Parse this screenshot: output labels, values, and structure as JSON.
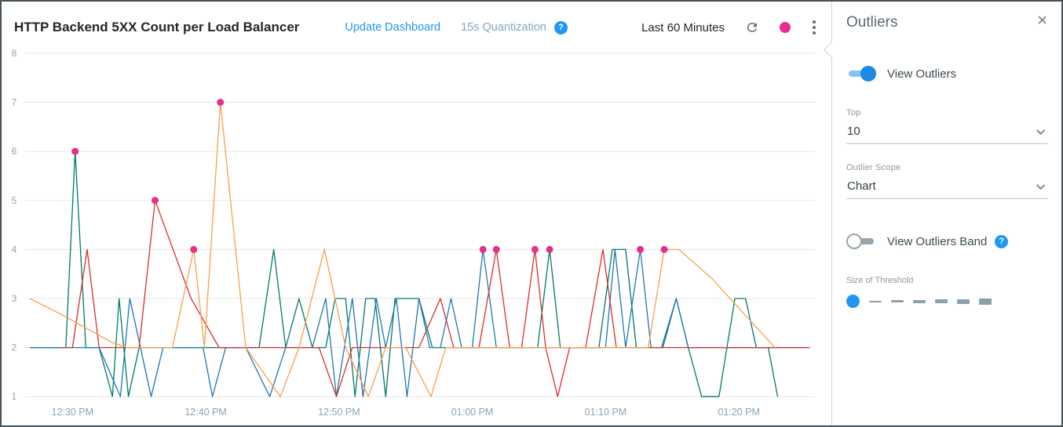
{
  "header": {
    "title": "HTTP Backend 5XX Count per Load Balancer",
    "update_dashboard_label": "Update Dashboard",
    "quantization_label": "15s Quantization",
    "help_glyph": "?",
    "time_range_label": "Last 60 Minutes",
    "chart_color_indicator": "#e82d8b"
  },
  "sidebar": {
    "title": "Outliers",
    "close_glyph": "×",
    "view_outliers": {
      "label": "View Outliers",
      "enabled": true
    },
    "top": {
      "label": "Top",
      "value": "10"
    },
    "outlier_scope": {
      "label": "Outlier Scope",
      "value": "Chart"
    },
    "view_outliers_band": {
      "label": "View Outliers Band",
      "enabled": false,
      "help_glyph": "?"
    },
    "size_of_threshold": {
      "label": "Size of Threshold",
      "sizes": [
        2,
        3,
        4,
        5,
        6,
        8
      ],
      "selected_color": "#2196f3"
    }
  },
  "chart_data": {
    "type": "line",
    "title": "HTTP Backend 5XX Count per Load Balancer",
    "grid": true,
    "legend": "none",
    "x_axis": {
      "unit": "minutes after 12:30 PM",
      "min": -3.55,
      "max": 55.7,
      "ticks": [
        {
          "x": 0,
          "label": "12:30 PM"
        },
        {
          "x": 10,
          "label": "12:40 PM"
        },
        {
          "x": 20,
          "label": "12:50 PM"
        },
        {
          "x": 30,
          "label": "01:00 PM"
        },
        {
          "x": 40,
          "label": "01:10 PM"
        },
        {
          "x": 50,
          "label": "01:20 PM"
        }
      ]
    },
    "y_axis": {
      "min": 1,
      "max": 8,
      "ticks": [
        1,
        2,
        3,
        4,
        5,
        6,
        7,
        8
      ]
    },
    "outlier_color": "#e82d8b",
    "series": [
      {
        "name": "teal",
        "color": "#00796b",
        "points": [
          [
            -3.2,
            2
          ],
          [
            -2,
            2
          ],
          [
            -1,
            2
          ],
          [
            -0.5,
            2
          ],
          [
            0.2,
            6
          ],
          [
            1,
            2
          ],
          [
            2,
            2
          ],
          [
            3,
            1
          ],
          [
            3.5,
            3
          ],
          [
            4.2,
            1
          ],
          [
            5,
            2
          ],
          [
            6,
            2
          ],
          [
            7,
            2
          ],
          [
            8,
            2
          ],
          [
            9,
            2
          ],
          [
            10,
            2
          ],
          [
            11,
            2
          ],
          [
            12,
            2
          ],
          [
            13,
            2
          ],
          [
            14,
            2
          ],
          [
            15.1,
            4
          ],
          [
            16,
            2
          ],
          [
            17,
            3
          ],
          [
            18,
            2
          ],
          [
            19,
            2
          ],
          [
            19.7,
            3
          ],
          [
            20.5,
            3
          ],
          [
            21.2,
            1
          ],
          [
            22,
            3
          ],
          [
            22.7,
            3
          ],
          [
            23.5,
            1
          ],
          [
            24.2,
            3
          ],
          [
            25,
            3
          ],
          [
            26,
            3
          ],
          [
            27,
            2
          ],
          [
            28,
            2
          ],
          [
            29,
            2
          ],
          [
            30,
            2
          ],
          [
            31,
            2
          ],
          [
            32,
            2
          ],
          [
            33,
            2
          ],
          [
            34,
            2
          ],
          [
            34.9,
            2
          ],
          [
            35.8,
            4
          ],
          [
            36.6,
            2
          ],
          [
            37.5,
            2
          ],
          [
            38.5,
            2
          ],
          [
            39.5,
            2
          ],
          [
            40.5,
            4
          ],
          [
            41.5,
            4
          ],
          [
            42.3,
            2
          ],
          [
            43.2,
            2
          ],
          [
            44.2,
            2
          ],
          [
            45.3,
            3
          ],
          [
            46.2,
            2
          ],
          [
            47.2,
            1
          ],
          [
            48.5,
            1
          ],
          [
            49.7,
            3
          ],
          [
            50.5,
            3
          ],
          [
            51.3,
            2
          ],
          [
            52.2,
            2
          ],
          [
            52.9,
            1
          ]
        ]
      },
      {
        "name": "blue",
        "color": "#1f77b4",
        "points": [
          [
            -3.2,
            2
          ],
          [
            -2,
            2
          ],
          [
            -1,
            2
          ],
          [
            0,
            2
          ],
          [
            1,
            2
          ],
          [
            2,
            2
          ],
          [
            3.6,
            1
          ],
          [
            4.3,
            3
          ],
          [
            5.9,
            1
          ],
          [
            6.8,
            2
          ],
          [
            8,
            2
          ],
          [
            9.8,
            2
          ],
          [
            10.5,
            1
          ],
          [
            11.5,
            2
          ],
          [
            13,
            2
          ],
          [
            14.8,
            1
          ],
          [
            16,
            2
          ],
          [
            17,
            2
          ],
          [
            18,
            2
          ],
          [
            19,
            3
          ],
          [
            19.8,
            1
          ],
          [
            21,
            3
          ],
          [
            21.8,
            1
          ],
          [
            22.8,
            3
          ],
          [
            23.5,
            2
          ],
          [
            24.3,
            3
          ],
          [
            25.1,
            1
          ],
          [
            26,
            3
          ],
          [
            26.8,
            2
          ],
          [
            27.6,
            2
          ],
          [
            28.4,
            3
          ],
          [
            29.2,
            2
          ],
          [
            30,
            2
          ],
          [
            30.8,
            4
          ],
          [
            31.8,
            2
          ],
          [
            32.8,
            2
          ],
          [
            34,
            2
          ],
          [
            35,
            2
          ],
          [
            36,
            2
          ],
          [
            37,
            2
          ],
          [
            38,
            2
          ],
          [
            39,
            2
          ],
          [
            40,
            2
          ],
          [
            40.7,
            4
          ],
          [
            41.5,
            2
          ],
          [
            42.6,
            4
          ],
          [
            43.4,
            2
          ],
          [
            44.3,
            2
          ],
          [
            45.3,
            3
          ],
          [
            46.2,
            2
          ],
          [
            47,
            2
          ],
          [
            48,
            2
          ],
          [
            49,
            2
          ],
          [
            50,
            2
          ],
          [
            51,
            2
          ],
          [
            52,
            2
          ],
          [
            53,
            2
          ],
          [
            54,
            2
          ],
          [
            55.3,
            2
          ]
        ]
      },
      {
        "name": "red",
        "color": "#d62f2a",
        "points": [
          [
            -0.9,
            2
          ],
          [
            0,
            2
          ],
          [
            1.1,
            4
          ],
          [
            2,
            2
          ],
          [
            3,
            2
          ],
          [
            4,
            2
          ],
          [
            5,
            2
          ],
          [
            6.2,
            5
          ],
          [
            8.9,
            3
          ],
          [
            11,
            2
          ],
          [
            12,
            2
          ],
          [
            13,
            2
          ],
          [
            14,
            2
          ],
          [
            15,
            2
          ],
          [
            16,
            2
          ],
          [
            17,
            2
          ],
          [
            18.5,
            2
          ],
          [
            19.8,
            1
          ],
          [
            21,
            2
          ],
          [
            22,
            2
          ],
          [
            23,
            2
          ],
          [
            24,
            2
          ],
          [
            25,
            2
          ],
          [
            26,
            2
          ],
          [
            27.6,
            3
          ],
          [
            28.6,
            2
          ],
          [
            29.5,
            2
          ],
          [
            30.5,
            2
          ],
          [
            31.8,
            4
          ],
          [
            32.8,
            2
          ],
          [
            33.7,
            2
          ],
          [
            34.7,
            4
          ],
          [
            35.5,
            2
          ],
          [
            36.4,
            1
          ],
          [
            37.3,
            2
          ],
          [
            38.5,
            2
          ],
          [
            39.8,
            4
          ],
          [
            40.8,
            2
          ],
          [
            42,
            2
          ],
          [
            43,
            2
          ],
          [
            44,
            2
          ],
          [
            45,
            2
          ],
          [
            46,
            2
          ],
          [
            47,
            2
          ],
          [
            48,
            2
          ],
          [
            49,
            2
          ],
          [
            50,
            2
          ],
          [
            51,
            2
          ],
          [
            52,
            2
          ],
          [
            53,
            2
          ],
          [
            54,
            2
          ],
          [
            55.3,
            2
          ]
        ]
      },
      {
        "name": "orange",
        "color": "#f6a04d",
        "points": [
          [
            -3.2,
            3
          ],
          [
            -1,
            2.7
          ],
          [
            1,
            2.4
          ],
          [
            3,
            2.1
          ],
          [
            4.1,
            2
          ],
          [
            6,
            2
          ],
          [
            7.5,
            2
          ],
          [
            9.1,
            4
          ],
          [
            9.9,
            2
          ],
          [
            11.1,
            7
          ],
          [
            13,
            2
          ],
          [
            15.6,
            1
          ],
          [
            17,
            2
          ],
          [
            18.9,
            4
          ],
          [
            20.5,
            2
          ],
          [
            22.2,
            1
          ],
          [
            23.5,
            2
          ],
          [
            25,
            2
          ],
          [
            26.9,
            1
          ],
          [
            28,
            2
          ],
          [
            30,
            2
          ],
          [
            32,
            2
          ],
          [
            34,
            2
          ],
          [
            36,
            2
          ],
          [
            38,
            2
          ],
          [
            40,
            2
          ],
          [
            42,
            2
          ],
          [
            43.2,
            2
          ],
          [
            44.4,
            4
          ],
          [
            45.5,
            4
          ],
          [
            48,
            3.4
          ],
          [
            50,
            2.8
          ],
          [
            52.7,
            2
          ]
        ]
      }
    ],
    "outliers": [
      {
        "x": 0.2,
        "y": 6,
        "series": "teal"
      },
      {
        "x": 6.2,
        "y": 5,
        "series": "red"
      },
      {
        "x": 9.1,
        "y": 4,
        "series": "orange"
      },
      {
        "x": 11.1,
        "y": 7,
        "series": "orange"
      },
      {
        "x": 30.8,
        "y": 4,
        "series": "blue"
      },
      {
        "x": 31.8,
        "y": 4,
        "series": "red"
      },
      {
        "x": 34.7,
        "y": 4,
        "series": "red"
      },
      {
        "x": 35.8,
        "y": 4,
        "series": "teal"
      },
      {
        "x": 42.6,
        "y": 4,
        "series": "blue"
      },
      {
        "x": 44.4,
        "y": 4,
        "series": "orange"
      }
    ]
  }
}
